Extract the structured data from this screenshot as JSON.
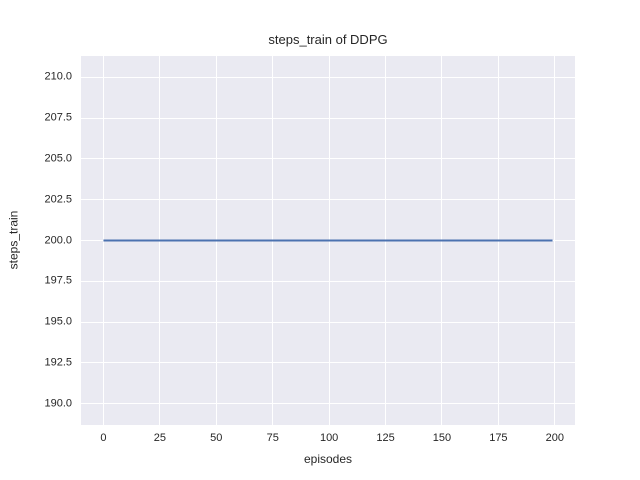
{
  "chart_data": {
    "type": "line",
    "title": "steps_train of DDPG",
    "xlabel": "episodes",
    "ylabel": "steps_train",
    "xlim": [
      -9.95,
      208.95
    ],
    "ylim": [
      188.7,
      211.3
    ],
    "x_tick_values": [
      0,
      25,
      50,
      75,
      100,
      125,
      150,
      175,
      200
    ],
    "x_tick_labels": [
      "0",
      "25",
      "50",
      "75",
      "100",
      "125",
      "150",
      "175",
      "200"
    ],
    "y_tick_values": [
      190.0,
      192.5,
      195.0,
      197.5,
      200.0,
      202.5,
      205.0,
      207.5,
      210.0
    ],
    "y_tick_labels": [
      "190.0",
      "192.5",
      "195.0",
      "197.5",
      "200.0",
      "202.5",
      "205.0",
      "207.5",
      "210.0"
    ],
    "grid": true,
    "legend_position": "none",
    "plot_bg_color": "#eaeaf2",
    "grid_color": "#ffffff",
    "text_color": "#262626",
    "series": [
      {
        "name": "steps_train",
        "color": "#4c72b0",
        "x": [
          0,
          199
        ],
        "y": [
          200,
          200
        ]
      }
    ]
  }
}
